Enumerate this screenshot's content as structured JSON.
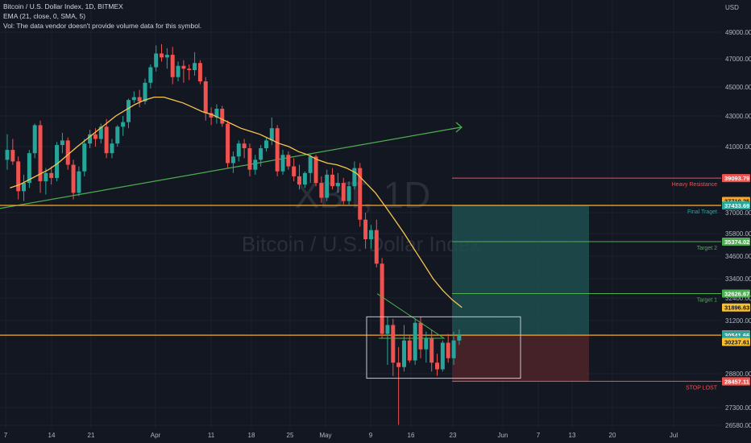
{
  "header": {
    "title": "Bitcoin / U.S. Dollar Index, 1D, BITMEX",
    "ema": "EMA (21, close, 0, SMA, 5)",
    "vol": "Vol: The data vendor doesn't provide volume data for this symbol."
  },
  "watermark": {
    "ticker": "XBT, 1D",
    "name": "Bitcoin / U.S. Dollar Index"
  },
  "chart_data": {
    "type": "candlestick",
    "currency": "USD",
    "y_ticks": [
      26580,
      27300,
      28800,
      31200,
      32400,
      33400,
      34600,
      35800,
      37000,
      41000,
      43000,
      45000,
      47000,
      49000
    ],
    "x_ticks": [
      "7",
      "14",
      "21",
      "Apr",
      "11",
      "18",
      "25",
      "May",
      "9",
      "16",
      "23",
      "Jun",
      "7",
      "13",
      "20",
      "Jul"
    ],
    "ohlc": [
      [
        40200,
        41800,
        39600,
        40800
      ],
      [
        40800,
        41500,
        39900,
        40100
      ],
      [
        40100,
        40400,
        37800,
        38300
      ],
      [
        38300,
        39300,
        37700,
        38800
      ],
      [
        38800,
        40800,
        38500,
        40600
      ],
      [
        40600,
        42500,
        40300,
        42400
      ],
      [
        42400,
        42700,
        38200,
        38900
      ],
      [
        38900,
        39700,
        38100,
        39400
      ],
      [
        39400,
        39800,
        38700,
        39100
      ],
      [
        39100,
        41300,
        38900,
        41100
      ],
      [
        41100,
        41900,
        40600,
        41400
      ],
      [
        41400,
        41600,
        39600,
        39900
      ],
      [
        39900,
        40200,
        37800,
        38200
      ],
      [
        38200,
        39800,
        38000,
        39500
      ],
      [
        39500,
        41500,
        39200,
        41200
      ],
      [
        41200,
        42100,
        40900,
        41800
      ],
      [
        41800,
        42200,
        41000,
        41500
      ],
      [
        41500,
        42500,
        41200,
        42300
      ],
      [
        42300,
        42800,
        40300,
        40600
      ],
      [
        40600,
        41500,
        40300,
        41200
      ],
      [
        41200,
        42400,
        41000,
        42300
      ],
      [
        42300,
        43000,
        41700,
        42600
      ],
      [
        42600,
        44200,
        42200,
        44100
      ],
      [
        44100,
        44700,
        43900,
        44300
      ],
      [
        44300,
        44800,
        43600,
        44000
      ],
      [
        44000,
        45600,
        43800,
        45300
      ],
      [
        45300,
        46600,
        44900,
        46400
      ],
      [
        46400,
        48000,
        46100,
        47400
      ],
      [
        47400,
        48100,
        46800,
        47100
      ],
      [
        47100,
        47800,
        46300,
        47300
      ],
      [
        47300,
        47900,
        45200,
        45700
      ],
      [
        45700,
        46800,
        45400,
        46500
      ],
      [
        46500,
        46900,
        45300,
        46300
      ],
      [
        46300,
        46600,
        45500,
        46200
      ],
      [
        46200,
        47500,
        45800,
        46700
      ],
      [
        46700,
        46900,
        45200,
        45400
      ],
      [
        45400,
        45700,
        42700,
        43200
      ],
      [
        43200,
        43600,
        42400,
        42900
      ],
      [
        42900,
        43800,
        42500,
        43500
      ],
      [
        43500,
        43700,
        42300,
        42500
      ],
      [
        42500,
        42700,
        39700,
        40000
      ],
      [
        40000,
        40700,
        39400,
        40400
      ],
      [
        40400,
        41400,
        40100,
        41200
      ],
      [
        41200,
        41500,
        40300,
        40900
      ],
      [
        40900,
        41200,
        39200,
        39600
      ],
      [
        39600,
        40500,
        39300,
        40200
      ],
      [
        40200,
        41100,
        39800,
        40900
      ],
      [
        40900,
        41600,
        40700,
        41400
      ],
      [
        41400,
        42900,
        41100,
        42200
      ],
      [
        42200,
        42400,
        39200,
        39500
      ],
      [
        39500,
        40800,
        39300,
        40500
      ],
      [
        40500,
        40700,
        39600,
        39800
      ],
      [
        39800,
        40300,
        38900,
        39200
      ],
      [
        39200,
        39900,
        38400,
        38700
      ],
      [
        38700,
        39500,
        38500,
        39400
      ],
      [
        39400,
        40600,
        38800,
        40400
      ],
      [
        40400,
        40500,
        38600,
        38800
      ],
      [
        38800,
        39200,
        37600,
        37900
      ],
      [
        37900,
        39600,
        37700,
        39300
      ],
      [
        39300,
        39700,
        38400,
        38600
      ],
      [
        38600,
        39400,
        38200,
        38800
      ],
      [
        38800,
        39100,
        37500,
        37700
      ],
      [
        37700,
        38900,
        37400,
        38600
      ],
      [
        38600,
        40100,
        38400,
        39700
      ],
      [
        39700,
        40000,
        36200,
        36600
      ],
      [
        36600,
        37000,
        35000,
        35500
      ],
      [
        35500,
        36300,
        35000,
        36000
      ],
      [
        36000,
        36600,
        34000,
        34200
      ],
      [
        34200,
        34500,
        30400,
        30600
      ],
      [
        30600,
        31400,
        29200,
        31000
      ],
      [
        31000,
        31300,
        28700,
        29300
      ],
      [
        29300,
        30000,
        26600,
        29100
      ],
      [
        29100,
        31000,
        28900,
        30300
      ],
      [
        30300,
        30500,
        29300,
        29400
      ],
      [
        29400,
        31300,
        29200,
        31100
      ],
      [
        31100,
        31400,
        29500,
        29900
      ],
      [
        29900,
        30700,
        29300,
        30400
      ],
      [
        30400,
        30800,
        28900,
        29300
      ],
      [
        29300,
        29700,
        28700,
        29000
      ],
      [
        29000,
        30300,
        28900,
        30200
      ],
      [
        30200,
        30600,
        29300,
        29500
      ],
      [
        29500,
        30700,
        29200,
        30300
      ],
      [
        30300,
        30800,
        30100,
        30541
      ]
    ],
    "ema21": [
      38500,
      38700,
      39000,
      39300,
      39600,
      40000,
      40500,
      41000,
      41500,
      42000,
      42500,
      43000,
      43400,
      43800,
      44100,
      44300,
      44300,
      44100,
      43900,
      43600,
      43300,
      43100,
      42800,
      42500,
      42200,
      42000,
      41800,
      41500,
      41200,
      41000,
      40700,
      40500,
      40200,
      40000,
      39900,
      39700,
      39400,
      38800,
      38200,
      37400,
      36600,
      35800,
      35000,
      34200,
      33400,
      32800,
      32300,
      31900
    ],
    "trendline_y": [
      37500,
      41500
    ],
    "horizontal_levels": [
      37439.13,
      30541.66
    ],
    "position": {
      "target": 37433.69,
      "entry": 30541.66,
      "stop": 28465.68
    },
    "range_box": {
      "top": 31400,
      "bottom": 28600
    },
    "annotations": [
      {
        "label": "Heavy Resistance",
        "price": 39093.79,
        "color": "#ef5350"
      },
      {
        "label": "Final Traget",
        "price": 37433.69,
        "color": "#26a69a"
      },
      {
        "label": "Target 2",
        "price": 35374.02,
        "color": "#4caf50"
      },
      {
        "label": "Target 1",
        "price": 32626.67,
        "color": "#4caf50"
      },
      {
        "label": "STOP LOST",
        "price": 28465.68,
        "color": "#ef5350"
      }
    ],
    "price_tags": [
      {
        "text": "39093.79",
        "price": 39093.79,
        "bg": "#ef5350",
        "fg": "#ffffff"
      },
      {
        "text": "37710.25",
        "price": 37710.25,
        "bg": "#f9a825",
        "fg": "#131722"
      },
      {
        "text": "37439.13",
        "price": 37439.13,
        "bg": "#fbc02d",
        "fg": "#131722"
      },
      {
        "text": "37433.69",
        "price": 37433.69,
        "bg": "#26a69a",
        "fg": "#ffffff"
      },
      {
        "text": "35374.02",
        "price": 35374.02,
        "bg": "#4caf50",
        "fg": "#ffffff"
      },
      {
        "text": "32626.67",
        "price": 32626.67,
        "bg": "#4caf50",
        "fg": "#ffffff"
      },
      {
        "text": "31896.63",
        "price": 31896.63,
        "bg": "#fbc02d",
        "fg": "#131722"
      },
      {
        "text": "30577.48",
        "price": 30577.48,
        "bg": "#9e9e9e",
        "fg": "#ffffff"
      },
      {
        "text": "30541.66",
        "price": 30541.66,
        "bg": "#26a69a",
        "fg": "#ffffff"
      },
      {
        "text": "10:52:06",
        "price": 30320,
        "bg": "#26a69a",
        "fg": "#ffffff"
      },
      {
        "text": "30237.61",
        "price": 30237.61,
        "bg": "#fbc02d",
        "fg": "#131722"
      },
      {
        "text": "28465.68",
        "price": 28465.68,
        "bg": "#ef5350",
        "fg": "#ffffff"
      },
      {
        "text": "28457.11",
        "price": 28457.11,
        "bg": "#ef5350",
        "fg": "#ffffff"
      }
    ],
    "colors": {
      "up": "#26a69a",
      "down": "#ef5350",
      "ema": "#f9c74f",
      "trend": "#4caf50",
      "level": "#f9a825"
    }
  }
}
